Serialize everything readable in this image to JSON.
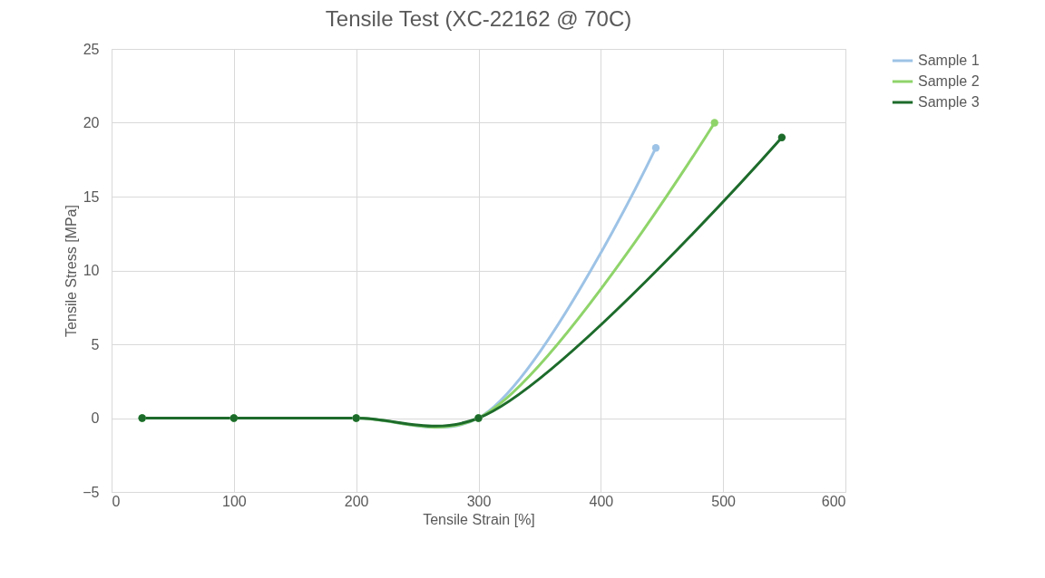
{
  "chart_data": {
    "type": "line",
    "title": "Tensile Test (XC-22162 @ 70C)",
    "xlabel": "Tensile Strain [%]",
    "ylabel": "Tensile Stress [MPa]",
    "xlim": [
      0,
      600
    ],
    "xticks": [
      0,
      100,
      200,
      300,
      400,
      500,
      600
    ],
    "ylim": [
      -5,
      25
    ],
    "yticks": [
      -5,
      0,
      5,
      10,
      15,
      20,
      25
    ],
    "grid": true,
    "legend": "right",
    "marker": "circle",
    "line_style": "solid",
    "series": [
      {
        "name": "Sample 1",
        "color": "#9dc3e6",
        "x": [
          25,
          100,
          200,
          300,
          445
        ],
        "values": [
          0,
          0,
          0,
          0,
          18.3
        ]
      },
      {
        "name": "Sample 2",
        "color": "#8fd46a",
        "x": [
          25,
          100,
          200,
          300,
          493
        ],
        "values": [
          0,
          0,
          0,
          0,
          20
        ]
      },
      {
        "name": "Sample 3",
        "color": "#1d6b2b",
        "x": [
          25,
          100,
          200,
          300,
          548
        ],
        "values": [
          0,
          0,
          0,
          0,
          19
        ]
      }
    ]
  }
}
